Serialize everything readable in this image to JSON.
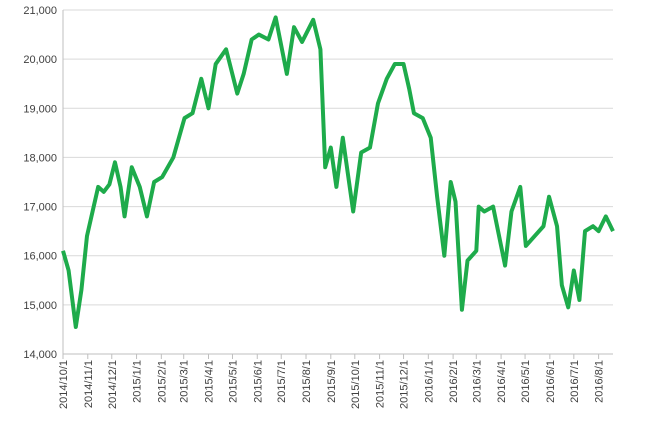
{
  "chart_data": {
    "type": "line",
    "x": [
      "2014/10/1",
      "2014/10/8",
      "2014/10/17",
      "2014/10/24",
      "2014/10/31",
      "2014/11/7",
      "2014/11/14",
      "2014/11/21",
      "2014/11/28",
      "2014/12/5",
      "2014/12/12",
      "2014/12/17",
      "2014/12/26",
      "2015/1/5",
      "2015/1/14",
      "2015/1/23",
      "2015/2/2",
      "2015/2/16",
      "2015/3/2",
      "2015/3/12",
      "2015/3/23",
      "2015/4/1",
      "2015/4/10",
      "2015/4/23",
      "2015/5/7",
      "2015/5/15",
      "2015/5/25",
      "2015/6/3",
      "2015/6/15",
      "2015/6/24",
      "2015/7/8",
      "2015/7/17",
      "2015/7/27",
      "2015/8/10",
      "2015/8/19",
      "2015/8/25",
      "2015/9/1",
      "2015/9/8",
      "2015/9/16",
      "2015/9/29",
      "2015/10/9",
      "2015/10/20",
      "2015/10/30",
      "2015/11/10",
      "2015/11/20",
      "2015/12/1",
      "2015/12/8",
      "2015/12/14",
      "2015/12/25",
      "2016/1/4",
      "2016/1/12",
      "2016/1/21",
      "2016/1/29",
      "2016/2/4",
      "2016/2/12",
      "2016/2/19",
      "2016/3/1",
      "2016/3/4",
      "2016/3/11",
      "2016/3/22",
      "2016/4/1",
      "2016/4/6",
      "2016/4/14",
      "2016/4/25",
      "2016/5/2",
      "2016/5/13",
      "2016/5/24",
      "2016/5/31",
      "2016/6/10",
      "2016/6/16",
      "2016/6/24",
      "2016/7/1",
      "2016/7/8",
      "2016/7/15",
      "2016/7/25",
      "2016/8/1",
      "2016/8/10",
      "2016/8/19"
    ],
    "series": [
      {
        "color": "#1eab4b",
        "values": [
          16100,
          15700,
          14550,
          15300,
          16400,
          16900,
          17400,
          17300,
          17450,
          17900,
          17400,
          16800,
          17800,
          17400,
          16800,
          17500,
          17600,
          18000,
          18800,
          18900,
          19600,
          19000,
          19900,
          20200,
          19300,
          19700,
          20400,
          20500,
          20400,
          20850,
          19700,
          20650,
          20350,
          20800,
          20200,
          17800,
          18200,
          17400,
          18400,
          16900,
          18100,
          18200,
          19100,
          19600,
          19900,
          19900,
          19400,
          18900,
          18800,
          18400,
          17200,
          16000,
          17500,
          17100,
          14900,
          15900,
          16100,
          17000,
          16900,
          17000,
          16200,
          15800,
          16900,
          17400,
          16200,
          16400,
          16600,
          17200,
          16600,
          15400,
          14950,
          15700,
          15100,
          16500,
          16600,
          16500,
          16800,
          16500
        ]
      }
    ],
    "xlim": [
      "2014/10/1",
      "2016/8/19"
    ],
    "xticks": [
      "2014/10/1",
      "2014/11/1",
      "2014/12/1",
      "2015/1/1",
      "2015/2/1",
      "2015/3/1",
      "2015/4/1",
      "2015/5/1",
      "2015/6/1",
      "2015/7/1",
      "2015/8/1",
      "2015/9/1",
      "2015/10/1",
      "2015/11/1",
      "2015/12/1",
      "2016/1/1",
      "2016/2/1",
      "2016/3/1",
      "2016/4/1",
      "2016/5/1",
      "2016/6/1",
      "2016/7/1",
      "2016/8/1"
    ],
    "ylim": [
      14000,
      21000
    ],
    "yticks": [
      {
        "value": 14000,
        "label": "14,000"
      },
      {
        "value": 15000,
        "label": "15,000"
      },
      {
        "value": 16000,
        "label": "16,000"
      },
      {
        "value": 17000,
        "label": "17,000"
      },
      {
        "value": 18000,
        "label": "18,000"
      },
      {
        "value": 19000,
        "label": "19,000"
      },
      {
        "value": 20000,
        "label": "20,000"
      },
      {
        "value": 21000,
        "label": "21,000"
      }
    ],
    "grid": true
  }
}
